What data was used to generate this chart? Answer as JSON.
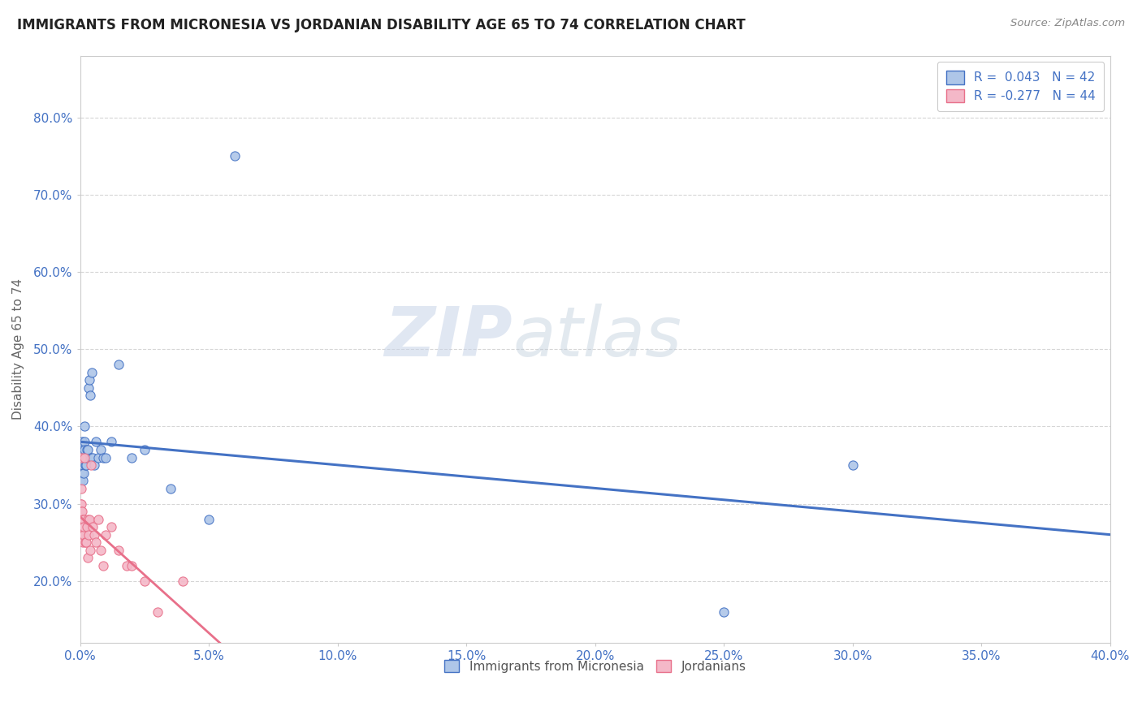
{
  "title": "IMMIGRANTS FROM MICRONESIA VS JORDANIAN DISABILITY AGE 65 TO 74 CORRELATION CHART",
  "source": "Source: ZipAtlas.com",
  "ylabel_label": "Disability Age 65 to 74",
  "legend1_label": "Immigrants from Micronesia",
  "legend2_label": "Jordanians",
  "r1": 0.043,
  "n1": 42,
  "r2": -0.277,
  "n2": 44,
  "color_blue": "#aec6e8",
  "color_blue_line": "#4472c4",
  "color_pink": "#f4b8c8",
  "color_pink_line": "#e8708a",
  "color_text_blue": "#4472c4",
  "watermark_zip": "ZIP",
  "watermark_atlas": "atlas",
  "blue_scatter_x": [
    0.0002,
    0.0004,
    0.0005,
    0.0006,
    0.0007,
    0.0008,
    0.0009,
    0.001,
    0.0012,
    0.0013,
    0.0015,
    0.0016,
    0.0017,
    0.0018,
    0.0019,
    0.002,
    0.0022,
    0.0024,
    0.0025,
    0.0027,
    0.003,
    0.0033,
    0.0035,
    0.004,
    0.0042,
    0.0045,
    0.005,
    0.0055,
    0.006,
    0.007,
    0.008,
    0.009,
    0.01,
    0.012,
    0.015,
    0.02,
    0.025,
    0.035,
    0.05,
    0.06,
    0.25,
    0.3
  ],
  "blue_scatter_y": [
    0.33,
    0.35,
    0.36,
    0.34,
    0.37,
    0.38,
    0.36,
    0.35,
    0.33,
    0.34,
    0.36,
    0.38,
    0.37,
    0.4,
    0.36,
    0.35,
    0.36,
    0.35,
    0.37,
    0.36,
    0.37,
    0.45,
    0.46,
    0.44,
    0.36,
    0.47,
    0.36,
    0.35,
    0.38,
    0.36,
    0.37,
    0.36,
    0.36,
    0.38,
    0.48,
    0.36,
    0.37,
    0.32,
    0.28,
    0.75,
    0.16,
    0.35
  ],
  "pink_scatter_x": [
    0.0001,
    0.0002,
    0.0002,
    0.0003,
    0.0004,
    0.0004,
    0.0005,
    0.0005,
    0.0006,
    0.0007,
    0.0007,
    0.0008,
    0.0009,
    0.001,
    0.001,
    0.0011,
    0.0012,
    0.0013,
    0.0014,
    0.0015,
    0.0017,
    0.002,
    0.0022,
    0.0025,
    0.003,
    0.003,
    0.0033,
    0.0035,
    0.004,
    0.0042,
    0.005,
    0.0055,
    0.006,
    0.007,
    0.008,
    0.009,
    0.01,
    0.012,
    0.015,
    0.018,
    0.02,
    0.025,
    0.03,
    0.04
  ],
  "pink_scatter_y": [
    0.28,
    0.3,
    0.28,
    0.32,
    0.36,
    0.27,
    0.3,
    0.29,
    0.27,
    0.29,
    0.27,
    0.26,
    0.27,
    0.28,
    0.26,
    0.27,
    0.25,
    0.28,
    0.26,
    0.27,
    0.36,
    0.25,
    0.25,
    0.27,
    0.23,
    0.28,
    0.26,
    0.28,
    0.24,
    0.35,
    0.27,
    0.26,
    0.25,
    0.28,
    0.24,
    0.22,
    0.26,
    0.27,
    0.24,
    0.22,
    0.22,
    0.2,
    0.16,
    0.2
  ],
  "xlim": [
    0.0,
    0.4
  ],
  "ylim": [
    0.12,
    0.88
  ],
  "yticks": [
    0.2,
    0.3,
    0.4,
    0.5,
    0.6,
    0.7,
    0.8
  ],
  "xticks": [
    0.0,
    0.05,
    0.1,
    0.15,
    0.2,
    0.25,
    0.3,
    0.35,
    0.4
  ]
}
